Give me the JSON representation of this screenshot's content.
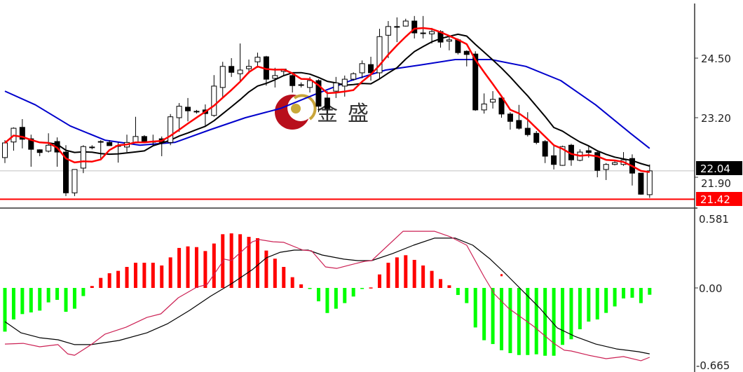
{
  "watermark": {
    "text": "金盛",
    "logo": "red-crescent-gold-dot-logo"
  },
  "chart_data": [
    {
      "type": "candlestick",
      "panel": "price",
      "y_ticks": [
        "24.50",
        "23.20",
        "21.90"
      ],
      "ylim_approx": [
        21.3,
        25.8
      ],
      "grid": false,
      "current_price": {
        "label": "22.04",
        "value": 22.04,
        "color": "#000000"
      },
      "horizontal_line": {
        "label": "21.42",
        "value": 21.42,
        "color": "#ff0000"
      },
      "colors": {
        "up_body": "#ffffff",
        "down_body": "#000000",
        "ma_fast": "#ff0000",
        "ma_mid": "#000000",
        "ma_slow": "#0000cc"
      },
      "ohlc": [
        [
          22.33,
          22.71,
          22.21,
          22.65
        ],
        [
          22.67,
          22.99,
          22.48,
          22.97
        ],
        [
          22.99,
          23.17,
          22.53,
          22.73
        ],
        [
          22.74,
          22.83,
          22.13,
          22.51
        ],
        [
          22.5,
          22.51,
          22.36,
          22.44
        ],
        [
          22.47,
          22.86,
          22.44,
          22.6
        ],
        [
          22.68,
          22.77,
          22.13,
          22.45
        ],
        [
          22.45,
          22.6,
          21.49,
          21.56
        ],
        [
          21.56,
          22.07,
          21.49,
          22.07
        ],
        [
          22.1,
          22.6,
          21.99,
          22.57
        ],
        [
          22.56,
          22.6,
          22.51,
          22.56
        ],
        [
          22.68,
          22.71,
          22.3,
          22.68
        ],
        [
          22.66,
          22.71,
          22.59,
          22.59
        ],
        [
          22.59,
          22.66,
          22.22,
          22.59
        ],
        [
          22.56,
          22.83,
          22.45,
          22.66
        ],
        [
          22.66,
          23.22,
          22.66,
          22.79
        ],
        [
          22.79,
          22.82,
          22.66,
          22.68
        ],
        [
          22.68,
          22.83,
          22.6,
          22.68
        ],
        [
          22.74,
          22.79,
          22.36,
          22.66
        ],
        [
          22.66,
          23.28,
          22.6,
          23.22
        ],
        [
          23.2,
          23.52,
          22.89,
          23.45
        ],
        [
          23.43,
          23.63,
          23.12,
          23.35
        ],
        [
          23.34,
          23.37,
          23.29,
          23.34
        ],
        [
          23.37,
          23.49,
          23.02,
          23.29
        ],
        [
          23.25,
          24.13,
          23.22,
          23.89
        ],
        [
          23.86,
          24.42,
          23.63,
          24.32
        ],
        [
          24.32,
          24.5,
          24.09,
          24.19
        ],
        [
          24.16,
          24.82,
          24.01,
          24.24
        ],
        [
          24.27,
          24.47,
          24.16,
          24.32
        ],
        [
          24.42,
          24.62,
          24.29,
          24.52
        ],
        [
          24.53,
          24.55,
          23.9,
          24.04
        ],
        [
          24.06,
          24.29,
          23.86,
          24.12
        ],
        [
          24.21,
          24.27,
          24.12,
          24.26
        ],
        [
          24.12,
          24.19,
          23.75,
          23.9
        ],
        [
          23.92,
          23.97,
          23.86,
          23.92
        ],
        [
          23.86,
          24.09,
          23.75,
          24.01
        ],
        [
          24.01,
          24.04,
          23.32,
          23.45
        ],
        [
          23.63,
          23.78,
          23.29,
          23.4
        ],
        [
          23.78,
          24.09,
          23.63,
          23.96
        ],
        [
          23.89,
          24.12,
          23.66,
          24.04
        ],
        [
          24.04,
          24.19,
          24.01,
          24.16
        ],
        [
          24.18,
          24.45,
          24.06,
          24.38
        ],
        [
          24.36,
          24.53,
          24.01,
          24.18
        ],
        [
          24.18,
          25.14,
          24.06,
          24.97
        ],
        [
          25.0,
          25.31,
          24.5,
          25.19
        ],
        [
          25.19,
          25.39,
          24.85,
          25.19
        ],
        [
          25.2,
          25.36,
          25.19,
          25.31
        ],
        [
          25.31,
          25.42,
          24.93,
          25.05
        ],
        [
          25.05,
          25.42,
          24.93,
          25.05
        ],
        [
          25.03,
          25.16,
          24.82,
          25.08
        ],
        [
          25.08,
          25.11,
          24.73,
          24.85
        ],
        [
          24.87,
          24.97,
          24.67,
          24.9
        ],
        [
          24.9,
          24.93,
          24.58,
          24.62
        ],
        [
          24.65,
          24.67,
          24.32,
          24.58
        ],
        [
          24.59,
          24.65,
          23.35,
          23.37
        ],
        [
          23.37,
          23.73,
          23.29,
          23.5
        ],
        [
          23.54,
          23.78,
          23.4,
          23.6
        ],
        [
          23.63,
          23.66,
          23.2,
          23.28
        ],
        [
          23.28,
          23.32,
          22.94,
          23.12
        ],
        [
          23.14,
          23.48,
          22.94,
          22.97
        ],
        [
          22.97,
          23.32,
          22.79,
          22.83
        ],
        [
          22.86,
          22.91,
          22.62,
          22.66
        ],
        [
          22.68,
          22.71,
          22.21,
          22.36
        ],
        [
          22.37,
          22.59,
          22.07,
          22.18
        ],
        [
          22.16,
          22.59,
          22.15,
          22.57
        ],
        [
          22.6,
          22.63,
          22.15,
          22.28
        ],
        [
          22.27,
          22.51,
          22.25,
          22.45
        ],
        [
          22.48,
          22.6,
          22.33,
          22.44
        ],
        [
          22.44,
          22.48,
          21.9,
          22.05
        ],
        [
          22.07,
          22.21,
          21.84,
          22.18
        ],
        [
          22.18,
          22.25,
          22.16,
          22.22
        ],
        [
          22.18,
          22.45,
          22.15,
          22.28
        ],
        [
          22.31,
          22.4,
          21.72,
          21.99
        ],
        [
          21.99,
          21.99,
          21.52,
          21.53
        ],
        [
          21.52,
          22.18,
          21.45,
          22.04
        ]
      ],
      "ma_slow_points": [
        [
          0,
          23.78
        ],
        [
          3.5,
          23.48
        ],
        [
          7.5,
          23.02
        ],
        [
          11.5,
          22.71
        ],
        [
          15.5,
          22.6
        ],
        [
          19.5,
          22.66
        ],
        [
          23.6,
          22.94
        ],
        [
          27.6,
          23.2
        ],
        [
          31.6,
          23.4
        ],
        [
          35.6,
          23.71
        ],
        [
          39.7,
          24.01
        ],
        [
          43.7,
          24.24
        ],
        [
          47.7,
          24.35
        ],
        [
          51.7,
          24.47
        ],
        [
          55.8,
          24.47
        ],
        [
          59.8,
          24.32
        ],
        [
          63.8,
          24.01
        ],
        [
          67.8,
          23.48
        ],
        [
          71.8,
          22.86
        ],
        [
          74,
          22.53
        ]
      ]
    },
    {
      "type": "bar",
      "panel": "macd",
      "y_ticks": [
        "0.581",
        "0.00",
        "-0.665"
      ],
      "ylim": [
        -0.665,
        0.581
      ],
      "colors": {
        "positive": "#ff0000",
        "negative": "#00ff00",
        "macd_line": "#cc2255",
        "signal_line": "#000000"
      },
      "histogram": [
        -0.366,
        -0.264,
        -0.219,
        -0.205,
        -0.19,
        -0.121,
        -0.1,
        -0.2,
        -0.174,
        -0.068,
        0.016,
        0.084,
        0.123,
        0.143,
        0.176,
        0.211,
        0.211,
        0.211,
        0.188,
        0.256,
        0.335,
        0.348,
        0.342,
        0.309,
        0.372,
        0.45,
        0.457,
        0.45,
        0.428,
        0.417,
        0.313,
        0.245,
        0.176,
        0.09,
        0.03,
        -0.005,
        -0.112,
        -0.21,
        -0.174,
        -0.127,
        -0.072,
        -0.008,
        0.004,
        0.113,
        0.211,
        0.256,
        0.274,
        0.235,
        0.188,
        0.143,
        0.074,
        0.022,
        -0.059,
        -0.127,
        -0.331,
        -0.438,
        -0.47,
        -0.522,
        -0.546,
        -0.562,
        -0.562,
        -0.556,
        -0.568,
        -0.568,
        -0.477,
        -0.43,
        -0.346,
        -0.282,
        -0.264,
        -0.209,
        -0.155,
        -0.088,
        -0.082,
        -0.127,
        -0.057
      ],
      "macd_line": [
        [
          0,
          -0.47
        ],
        [
          2.1,
          -0.464
        ],
        [
          4,
          -0.493
        ],
        [
          6.1,
          -0.475
        ],
        [
          7.2,
          -0.552
        ],
        [
          8,
          -0.564
        ],
        [
          9.9,
          -0.475
        ],
        [
          11.5,
          -0.387
        ],
        [
          13.9,
          -0.329
        ],
        [
          16.3,
          -0.247
        ],
        [
          17.9,
          -0.217
        ],
        [
          19.9,
          -0.082
        ],
        [
          22,
          0.006
        ],
        [
          23.2,
          0.029
        ],
        [
          25.2,
          0.241
        ],
        [
          26,
          0.229
        ],
        [
          28.4,
          0.387
        ],
        [
          29.2,
          0.405
        ],
        [
          30.8,
          0.387
        ],
        [
          32,
          0.382
        ],
        [
          34.2,
          0.317
        ],
        [
          35.2,
          0.311
        ],
        [
          36.8,
          0.176
        ],
        [
          38.1,
          0.164
        ],
        [
          39.7,
          0.194
        ],
        [
          41.3,
          0.223
        ],
        [
          42.1,
          0.229
        ],
        [
          45.7,
          0.475
        ],
        [
          49.3,
          0.475
        ],
        [
          51.1,
          0.429
        ],
        [
          53,
          0.358
        ],
        [
          55,
          0.094
        ],
        [
          56.2,
          -0.053
        ],
        [
          57.8,
          -0.17
        ],
        [
          60.6,
          -0.317
        ],
        [
          63,
          -0.464
        ],
        [
          64.2,
          -0.522
        ],
        [
          65,
          -0.528
        ],
        [
          67,
          -0.564
        ],
        [
          69,
          -0.593
        ],
        [
          71,
          -0.575
        ],
        [
          73,
          -0.61
        ],
        [
          74,
          -0.581
        ]
      ],
      "signal_line": [
        [
          0,
          -0.282
        ],
        [
          1.85,
          -0.376
        ],
        [
          4,
          -0.417
        ],
        [
          6.1,
          -0.434
        ],
        [
          8,
          -0.475
        ],
        [
          9.9,
          -0.475
        ],
        [
          13.1,
          -0.44
        ],
        [
          16.3,
          -0.376
        ],
        [
          18.7,
          -0.299
        ],
        [
          21.2,
          -0.188
        ],
        [
          23.6,
          -0.07
        ],
        [
          26,
          0.035
        ],
        [
          28.4,
          0.153
        ],
        [
          30,
          0.252
        ],
        [
          31.6,
          0.299
        ],
        [
          33.2,
          0.317
        ],
        [
          34.8,
          0.317
        ],
        [
          36.4,
          0.276
        ],
        [
          38.9,
          0.241
        ],
        [
          40.5,
          0.229
        ],
        [
          42.1,
          0.229
        ],
        [
          44.5,
          0.288
        ],
        [
          46.9,
          0.358
        ],
        [
          49.3,
          0.417
        ],
        [
          51.7,
          0.417
        ],
        [
          53.7,
          0.358
        ],
        [
          55.7,
          0.241
        ],
        [
          57.4,
          0.123
        ],
        [
          59.4,
          -0.023
        ],
        [
          61.4,
          -0.17
        ],
        [
          63.4,
          -0.335
        ],
        [
          65.4,
          -0.405
        ],
        [
          67.8,
          -0.47
        ],
        [
          70.2,
          -0.511
        ],
        [
          72.7,
          -0.534
        ],
        [
          74,
          -0.552
        ]
      ],
      "marker": [
        57,
        0.107
      ]
    }
  ]
}
